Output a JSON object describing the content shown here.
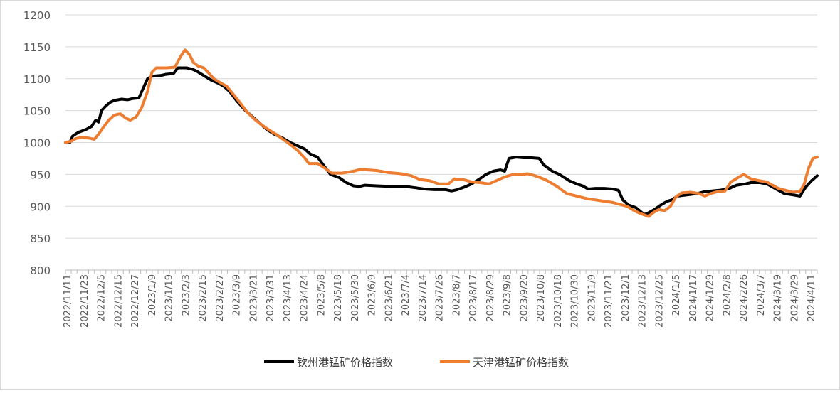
{
  "chart_data": {
    "type": "line",
    "title": "",
    "xlabel": "",
    "ylabel": "",
    "ylim": [
      800,
      1200
    ],
    "yticks": [
      800,
      850,
      900,
      950,
      1000,
      1050,
      1100,
      1150,
      1200
    ],
    "grid": "horizontal",
    "legend_position": "bottom",
    "xlim": [
      "2022-11-11",
      "2024-04-16"
    ],
    "x_tick_labels": [
      "2022/11/11",
      "2022/11/23",
      "2022/12/5",
      "2022/12/15",
      "2022/12/27",
      "2023/1/9",
      "2023/1/19",
      "2023/2/3",
      "2023/2/15",
      "2023/2/27",
      "2023/3/9",
      "2023/3/21",
      "2023/3/31",
      "2023/4/13",
      "2023/4/24",
      "2023/5/8",
      "2023/5/18",
      "2023/5/30",
      "2023/6/9",
      "2023/6/21",
      "2023/7/4",
      "2023/7/14",
      "2023/7/26",
      "2023/8/7",
      "2023/8/17",
      "2023/8/29",
      "2023/9/8",
      "2023/9/20",
      "2023/10/8",
      "2023/10/18",
      "2023/10/30",
      "2023/11/9",
      "2023/11/21",
      "2023/12/1",
      "2023/12/13",
      "2023/12/25",
      "2024/1/5",
      "2024/1/17",
      "2024/1/29",
      "2024/2/8",
      "2024/2/26",
      "2024/3/7",
      "2024/3/19",
      "2024/3/29",
      "2024/4/11"
    ],
    "series": [
      {
        "name": "钦州港锰矿价格指数",
        "color": "#000000",
        "points": [
          [
            "2022-11-11",
            1000
          ],
          [
            "2022-11-14",
            1000
          ],
          [
            "2022-11-16",
            1010
          ],
          [
            "2022-11-20",
            1016
          ],
          [
            "2022-11-25",
            1020
          ],
          [
            "2022-11-29",
            1025
          ],
          [
            "2022-12-02",
            1035
          ],
          [
            "2022-12-04",
            1032
          ],
          [
            "2022-12-06",
            1050
          ],
          [
            "2022-12-09",
            1057
          ],
          [
            "2022-12-12",
            1063
          ],
          [
            "2022-12-15",
            1066
          ],
          [
            "2022-12-20",
            1068
          ],
          [
            "2022-12-24",
            1067
          ],
          [
            "2022-12-28",
            1069
          ],
          [
            "2023-01-01",
            1070
          ],
          [
            "2023-01-04",
            1085
          ],
          [
            "2023-01-07",
            1100
          ],
          [
            "2023-01-10",
            1104
          ],
          [
            "2023-01-16",
            1105
          ],
          [
            "2023-01-20",
            1107
          ],
          [
            "2023-01-25",
            1108
          ],
          [
            "2023-01-28",
            1117
          ],
          [
            "2023-02-03",
            1117
          ],
          [
            "2023-02-07",
            1115
          ],
          [
            "2023-02-10",
            1112
          ],
          [
            "2023-02-15",
            1105
          ],
          [
            "2023-02-20",
            1098
          ],
          [
            "2023-02-25",
            1093
          ],
          [
            "2023-03-01",
            1088
          ],
          [
            "2023-03-05",
            1080
          ],
          [
            "2023-03-10",
            1065
          ],
          [
            "2023-03-16",
            1050
          ],
          [
            "2023-03-21",
            1040
          ],
          [
            "2023-03-26",
            1030
          ],
          [
            "2023-03-31",
            1020
          ],
          [
            "2023-04-05",
            1013
          ],
          [
            "2023-04-10",
            1008
          ],
          [
            "2023-04-16",
            1000
          ],
          [
            "2023-04-21",
            995
          ],
          [
            "2023-04-26",
            990
          ],
          [
            "2023-04-30",
            982
          ],
          [
            "2023-05-05",
            977
          ],
          [
            "2023-05-09",
            965
          ],
          [
            "2023-05-14",
            950
          ],
          [
            "2023-05-20",
            945
          ],
          [
            "2023-05-25",
            937
          ],
          [
            "2023-05-30",
            932
          ],
          [
            "2023-06-03",
            931
          ],
          [
            "2023-06-07",
            933
          ],
          [
            "2023-06-15",
            932
          ],
          [
            "2023-06-25",
            931
          ],
          [
            "2023-07-05",
            931
          ],
          [
            "2023-07-12",
            929
          ],
          [
            "2023-07-18",
            927
          ],
          [
            "2023-07-25",
            926
          ],
          [
            "2023-08-02",
            926
          ],
          [
            "2023-08-06",
            924
          ],
          [
            "2023-08-10",
            926
          ],
          [
            "2023-08-15",
            930
          ],
          [
            "2023-08-20",
            935
          ],
          [
            "2023-08-25",
            942
          ],
          [
            "2023-08-30",
            950
          ],
          [
            "2023-09-04",
            955
          ],
          [
            "2023-09-09",
            957
          ],
          [
            "2023-09-12",
            955
          ],
          [
            "2023-09-15",
            975
          ],
          [
            "2023-09-20",
            977
          ],
          [
            "2023-09-25",
            976
          ],
          [
            "2023-10-01",
            976
          ],
          [
            "2023-10-06",
            975
          ],
          [
            "2023-10-09",
            965
          ],
          [
            "2023-10-15",
            955
          ],
          [
            "2023-10-20",
            950
          ],
          [
            "2023-10-27",
            940
          ],
          [
            "2023-11-01",
            935
          ],
          [
            "2023-11-05",
            932
          ],
          [
            "2023-11-09",
            927
          ],
          [
            "2023-11-14",
            928
          ],
          [
            "2023-11-20",
            928
          ],
          [
            "2023-11-26",
            927
          ],
          [
            "2023-11-30",
            925
          ],
          [
            "2023-12-03",
            910
          ],
          [
            "2023-12-07",
            902
          ],
          [
            "2023-12-12",
            898
          ],
          [
            "2023-12-18",
            887
          ],
          [
            "2023-12-21",
            890
          ],
          [
            "2023-12-25",
            895
          ],
          [
            "2023-12-30",
            903
          ],
          [
            "2024-01-03",
            908
          ],
          [
            "2024-01-06",
            910
          ],
          [
            "2024-01-10",
            916
          ],
          [
            "2024-01-17",
            918
          ],
          [
            "2024-01-24",
            920
          ],
          [
            "2024-01-29",
            923
          ],
          [
            "2024-02-03",
            924
          ],
          [
            "2024-02-08",
            925
          ],
          [
            "2024-02-14",
            927
          ],
          [
            "2024-02-20",
            933
          ],
          [
            "2024-02-26",
            935
          ],
          [
            "2024-03-01",
            937
          ],
          [
            "2024-03-07",
            937
          ],
          [
            "2024-03-12",
            935
          ],
          [
            "2024-03-16",
            930
          ],
          [
            "2024-03-20",
            925
          ],
          [
            "2024-03-24",
            920
          ],
          [
            "2024-03-30",
            918
          ],
          [
            "2024-04-04",
            916
          ],
          [
            "2024-04-08",
            930
          ],
          [
            "2024-04-12",
            940
          ],
          [
            "2024-04-16",
            948
          ]
        ]
      },
      {
        "name": "天津港锰矿价格指数",
        "color": "#ED7D31",
        "points": [
          [
            "2022-11-11",
            1000
          ],
          [
            "2022-11-15",
            1002
          ],
          [
            "2022-11-18",
            1006
          ],
          [
            "2022-11-22",
            1008
          ],
          [
            "2022-11-27",
            1007
          ],
          [
            "2022-12-01",
            1005
          ],
          [
            "2022-12-04",
            1013
          ],
          [
            "2022-12-07",
            1023
          ],
          [
            "2022-12-11",
            1035
          ],
          [
            "2022-12-15",
            1043
          ],
          [
            "2022-12-19",
            1045
          ],
          [
            "2022-12-23",
            1038
          ],
          [
            "2022-12-26",
            1035
          ],
          [
            "2022-12-30",
            1040
          ],
          [
            "2023-01-03",
            1055
          ],
          [
            "2023-01-07",
            1080
          ],
          [
            "2023-01-10",
            1110
          ],
          [
            "2023-01-13",
            1117
          ],
          [
            "2023-01-20",
            1117
          ],
          [
            "2023-01-26",
            1118
          ],
          [
            "2023-01-30",
            1135
          ],
          [
            "2023-02-02",
            1145
          ],
          [
            "2023-02-05",
            1138
          ],
          [
            "2023-02-08",
            1125
          ],
          [
            "2023-02-11",
            1120
          ],
          [
            "2023-02-15",
            1117
          ],
          [
            "2023-02-18",
            1110
          ],
          [
            "2023-02-22",
            1100
          ],
          [
            "2023-02-27",
            1093
          ],
          [
            "2023-03-03",
            1088
          ],
          [
            "2023-03-07",
            1077
          ],
          [
            "2023-03-12",
            1063
          ],
          [
            "2023-03-17",
            1048
          ],
          [
            "2023-03-22",
            1037
          ],
          [
            "2023-03-27",
            1028
          ],
          [
            "2023-04-01",
            1020
          ],
          [
            "2023-04-06",
            1013
          ],
          [
            "2023-04-11",
            1005
          ],
          [
            "2023-04-16",
            997
          ],
          [
            "2023-04-21",
            988
          ],
          [
            "2023-04-26",
            976
          ],
          [
            "2023-04-29",
            967
          ],
          [
            "2023-05-05",
            967
          ],
          [
            "2023-05-10",
            960
          ],
          [
            "2023-05-15",
            952
          ],
          [
            "2023-05-22",
            952
          ],
          [
            "2023-05-30",
            955
          ],
          [
            "2023-06-04",
            958
          ],
          [
            "2023-06-09",
            957
          ],
          [
            "2023-06-15",
            956
          ],
          [
            "2023-06-23",
            953
          ],
          [
            "2023-07-02",
            951
          ],
          [
            "2023-07-09",
            948
          ],
          [
            "2023-07-15",
            942
          ],
          [
            "2023-07-22",
            940
          ],
          [
            "2023-07-28",
            935
          ],
          [
            "2023-08-04",
            935
          ],
          [
            "2023-08-08",
            943
          ],
          [
            "2023-08-14",
            942
          ],
          [
            "2023-08-20",
            938
          ],
          [
            "2023-08-26",
            937
          ],
          [
            "2023-09-01",
            935
          ],
          [
            "2023-09-06",
            940
          ],
          [
            "2023-09-12",
            946
          ],
          [
            "2023-09-18",
            950
          ],
          [
            "2023-09-24",
            950
          ],
          [
            "2023-09-28",
            951
          ],
          [
            "2023-10-03",
            948
          ],
          [
            "2023-10-09",
            943
          ],
          [
            "2023-10-14",
            937
          ],
          [
            "2023-10-19",
            930
          ],
          [
            "2023-10-25",
            920
          ],
          [
            "2023-11-01",
            916
          ],
          [
            "2023-11-08",
            912
          ],
          [
            "2023-11-14",
            910
          ],
          [
            "2023-11-20",
            908
          ],
          [
            "2023-11-26",
            906
          ],
          [
            "2023-12-01",
            903
          ],
          [
            "2023-12-06",
            900
          ],
          [
            "2023-12-11",
            893
          ],
          [
            "2023-12-16",
            888
          ],
          [
            "2023-12-21",
            884
          ],
          [
            "2023-12-24",
            890
          ],
          [
            "2023-12-28",
            895
          ],
          [
            "2024-01-01",
            893
          ],
          [
            "2024-01-05",
            900
          ],
          [
            "2024-01-09",
            915
          ],
          [
            "2024-01-13",
            921
          ],
          [
            "2024-01-19",
            922
          ],
          [
            "2024-01-25",
            920
          ],
          [
            "2024-01-29",
            916
          ],
          [
            "2024-02-02",
            920
          ],
          [
            "2024-02-07",
            923
          ],
          [
            "2024-02-12",
            924
          ],
          [
            "2024-02-16",
            938
          ],
          [
            "2024-02-21",
            945
          ],
          [
            "2024-02-25",
            950
          ],
          [
            "2024-03-01",
            943
          ],
          [
            "2024-03-07",
            940
          ],
          [
            "2024-03-12",
            938
          ],
          [
            "2024-03-16",
            933
          ],
          [
            "2024-03-20",
            928
          ],
          [
            "2024-03-25",
            925
          ],
          [
            "2024-03-30",
            922
          ],
          [
            "2024-04-04",
            923
          ],
          [
            "2024-04-07",
            935
          ],
          [
            "2024-04-10",
            960
          ],
          [
            "2024-04-13",
            975
          ],
          [
            "2024-04-16",
            977
          ]
        ]
      }
    ]
  }
}
